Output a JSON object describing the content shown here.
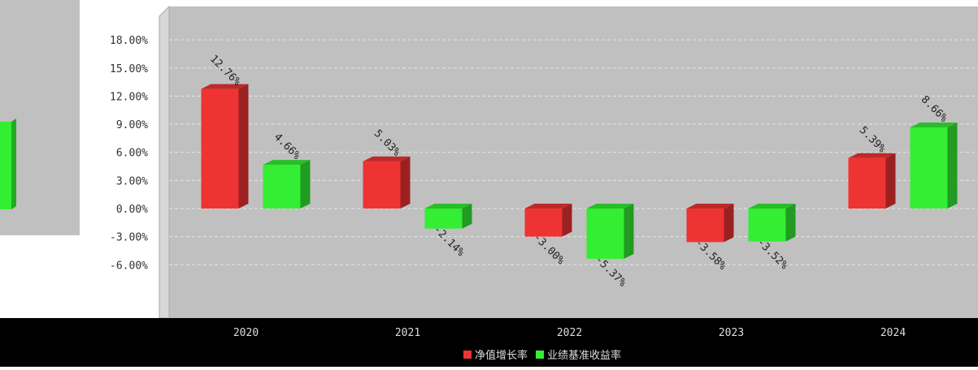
{
  "chart_data": {
    "type": "bar",
    "categories": [
      "2020",
      "2021",
      "2022",
      "2023",
      "2024"
    ],
    "series": [
      {
        "name": "净值增长率",
        "color": "#ee3333",
        "values": [
          12.76,
          5.03,
          -3.0,
          -3.58,
          5.39
        ]
      },
      {
        "name": "业绩基准收益率",
        "color": "#33ee33",
        "values": [
          4.66,
          -2.14,
          -5.37,
          -3.52,
          8.66
        ]
      }
    ],
    "data_labels": {
      "s0": [
        "12.76%",
        "5.03%",
        "-3.00%",
        "-3.58%",
        "5.39%"
      ],
      "s1": [
        "4.66%",
        "-2.14%",
        "-5.37%",
        "-3.52%",
        "8.66%"
      ]
    },
    "y_ticks": [
      18,
      15,
      12,
      9,
      6,
      3,
      0,
      -3,
      -6
    ],
    "y_tick_labels": [
      "18.00%",
      "15.00%",
      "12.00%",
      "9.00%",
      "6.00%",
      "3.00%",
      "0.00%",
      "-3.00%",
      "-6.00%"
    ],
    "ylim": [
      -6,
      20
    ],
    "grid": true,
    "legend_position": "bottom",
    "title": "",
    "xlabel": "",
    "ylabel": "",
    "colors": {
      "plot_bg": "#c0c0c0",
      "wall": "#d8d8d8",
      "footer_bg": "#000000",
      "footer_text": "#dddddd",
      "tick_text": "#333333"
    }
  }
}
